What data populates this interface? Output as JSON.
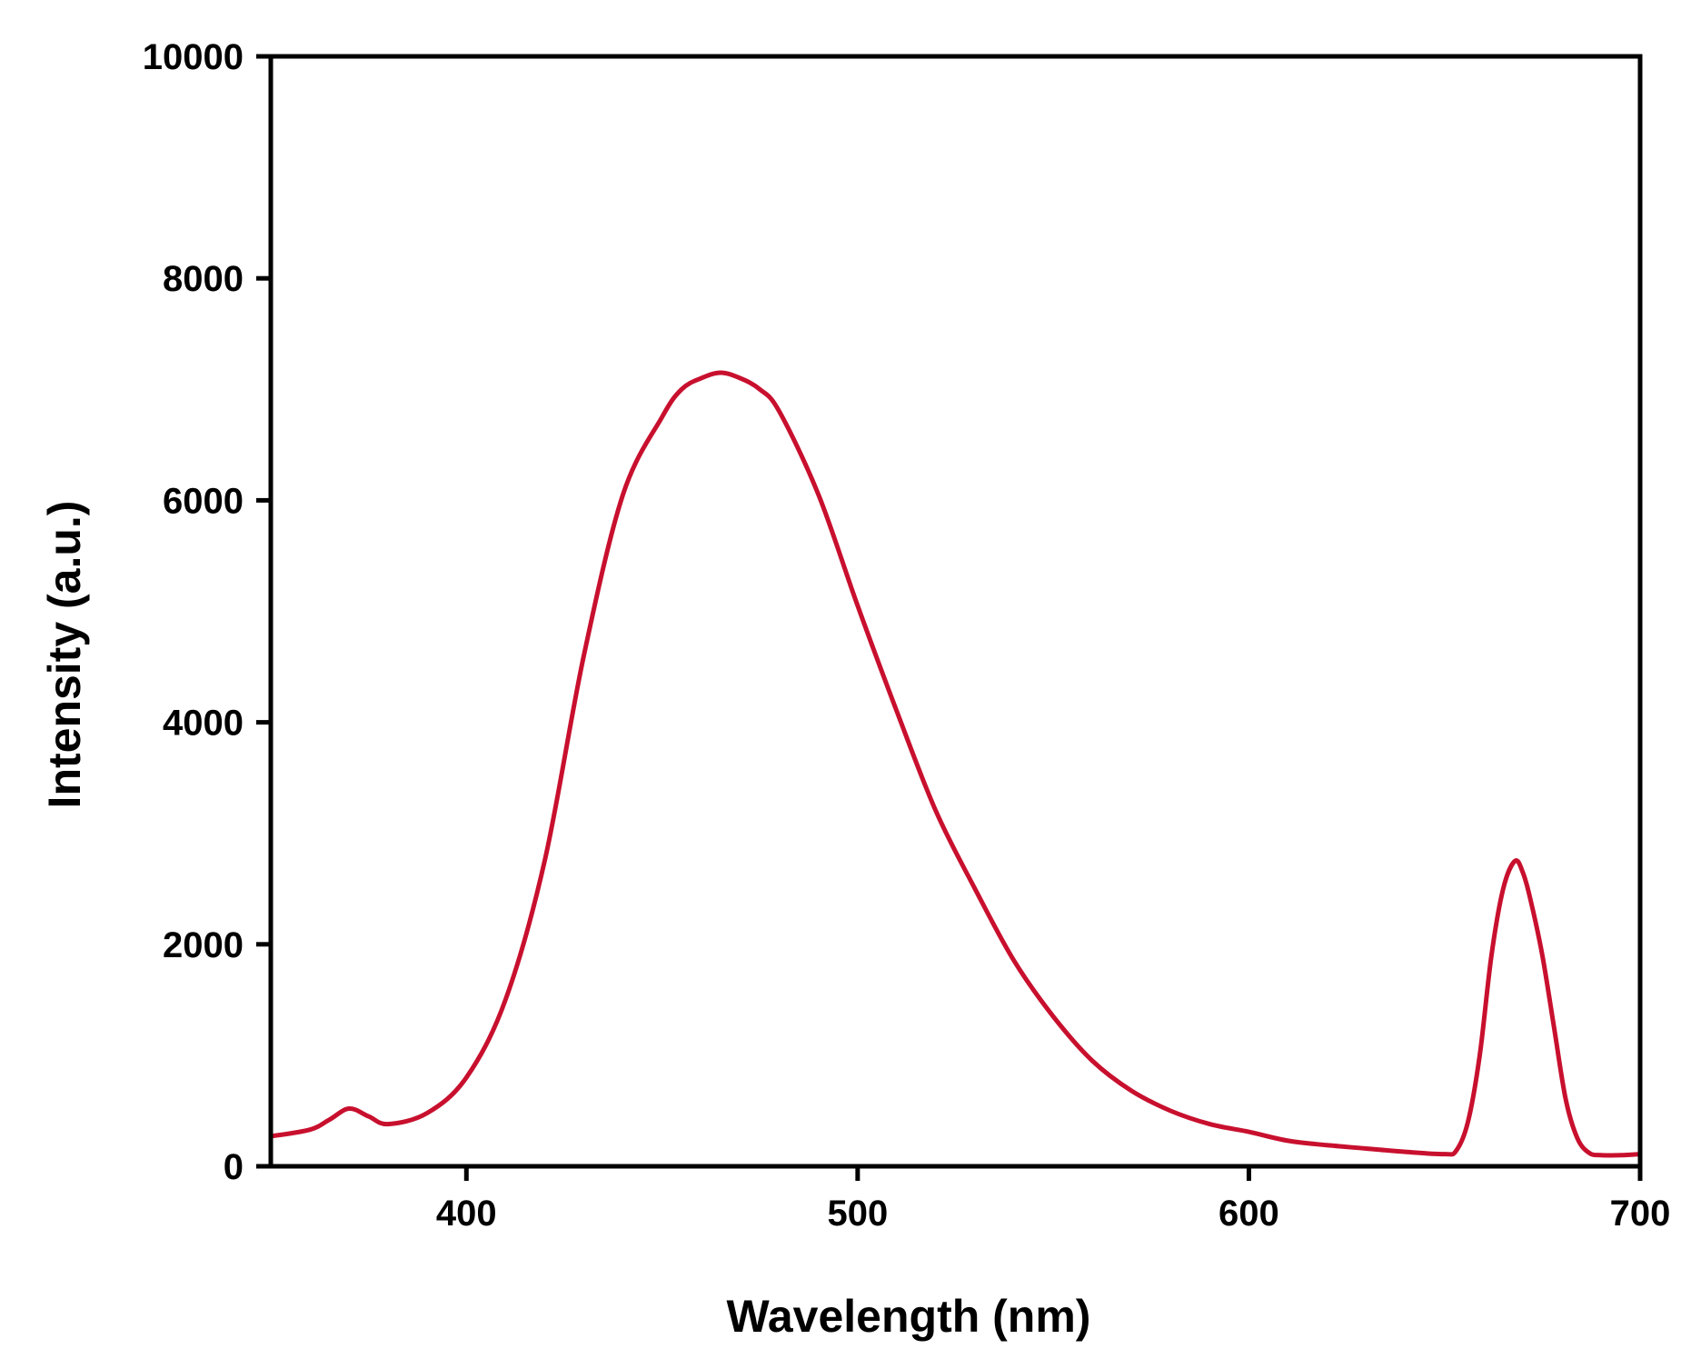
{
  "chart_data": {
    "type": "line",
    "title": "",
    "xlabel": "Wavelength (nm)",
    "ylabel": "Intensity (a.u.)",
    "xlim": [
      350,
      700
    ],
    "ylim": [
      0,
      10000
    ],
    "x_ticks": [
      400,
      500,
      600,
      700
    ],
    "x_tick_labels": [
      "400",
      "500",
      "600",
      "700"
    ],
    "y_ticks": [
      0,
      2000,
      4000,
      6000,
      8000,
      10000
    ],
    "y_tick_labels": [
      "0",
      "2000",
      "4000",
      "6000",
      "8000",
      "10000"
    ],
    "grid": false,
    "legend": "none",
    "series": [
      {
        "color": "#c8102e",
        "x": [
          350,
          360,
          365,
          370,
          375,
          380,
          390,
          400,
          410,
          420,
          430,
          440,
          450,
          455,
          460,
          465,
          470,
          475,
          480,
          490,
          500,
          510,
          520,
          530,
          540,
          550,
          560,
          570,
          580,
          590,
          600,
          610,
          620,
          630,
          640,
          650,
          653,
          656,
          659,
          662,
          665,
          668,
          670,
          672,
          675,
          678,
          681,
          684,
          687,
          690,
          695,
          700
        ],
        "y": [
          270,
          330,
          420,
          520,
          450,
          380,
          480,
          800,
          1500,
          2750,
          4600,
          6050,
          6750,
          7000,
          7100,
          7150,
          7100,
          7000,
          6800,
          6050,
          5050,
          4100,
          3200,
          2500,
          1850,
          1350,
          950,
          680,
          500,
          380,
          310,
          230,
          190,
          160,
          130,
          110,
          140,
          400,
          1000,
          1900,
          2500,
          2750,
          2650,
          2400,
          1900,
          1250,
          600,
          250,
          120,
          100,
          100,
          110
        ]
      }
    ]
  }
}
